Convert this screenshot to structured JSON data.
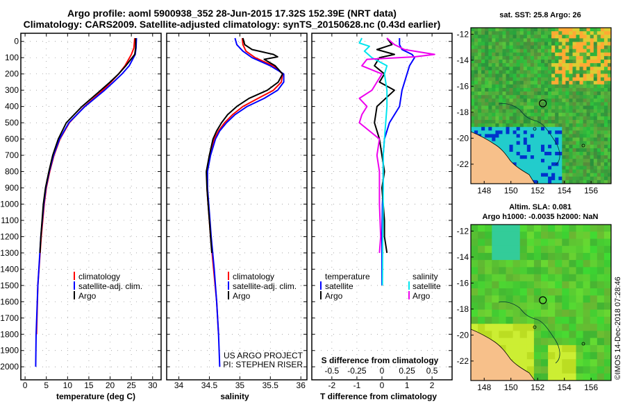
{
  "header": {
    "line1": "Argo profile: aoml 5900938_352 28-Jun-2015 17.32S 152.39E (NRT data)",
    "line2": "Climatology: CARS2009. Satellite-adjusted climatology: synTS_20150628.nc (0.43d earlier)"
  },
  "colors": {
    "climatology": "#ff0000",
    "satellite": "#0000ff",
    "argo": "#000000",
    "argo_t_diff": "#000000",
    "sat_s_diff": "#00e5ee",
    "argo_s_diff": "#ee00ee",
    "land": "#f7c08a"
  },
  "depth_axis": {
    "ticks": [
      "0",
      "100",
      "200",
      "300",
      "400",
      "500",
      "600",
      "700",
      "800",
      "900",
      "1000",
      "1100",
      "1200",
      "1300",
      "1400",
      "1500",
      "1600",
      "1700",
      "1800",
      "1900",
      "2000"
    ]
  },
  "chart_data": [
    {
      "type": "line",
      "name": "temperature-profile",
      "xlabel": "temperature (deg C)",
      "ylabel": "depth",
      "xlim": [
        -1,
        32
      ],
      "ylim": [
        2080,
        -50
      ],
      "xticks": [
        "0",
        "5",
        "10",
        "15",
        "20",
        "25",
        "30"
      ],
      "xtick_values": [
        0,
        5,
        10,
        15,
        20,
        25,
        30
      ],
      "legend": [
        "climatology",
        "satellite-adj. clim.",
        "Argo"
      ],
      "series": [
        {
          "name": "climatology",
          "color": "#ff0000",
          "depth": [
            -20,
            40,
            80,
            150,
            200,
            250,
            300,
            400,
            500,
            600,
            700,
            800,
            900,
            1000,
            1200,
            1500,
            1800
          ],
          "values": [
            25.8,
            25.6,
            25.0,
            23.5,
            22.0,
            20.2,
            18.3,
            14.0,
            10.4,
            8.2,
            6.8,
            5.8,
            5.0,
            4.5,
            3.8,
            3.0,
            2.7
          ]
        },
        {
          "name": "satellite-adj. clim.",
          "color": "#0000ff",
          "depth": [
            -20,
            40,
            80,
            150,
            200,
            250,
            300,
            400,
            500,
            600,
            700,
            800,
            900,
            1000,
            1200,
            1500,
            1800,
            2000
          ],
          "values": [
            26.2,
            26.1,
            25.9,
            24.5,
            22.8,
            20.8,
            18.7,
            14.1,
            10.3,
            8.1,
            6.7,
            5.7,
            4.9,
            4.4,
            3.7,
            3.0,
            2.6,
            2.5
          ]
        },
        {
          "name": "Argo",
          "color": "#000000",
          "depth": [
            -20,
            40,
            80,
            150,
            200,
            250,
            300,
            400,
            500,
            600,
            700,
            800,
            900,
            1000,
            1200,
            1300
          ],
          "values": [
            26.0,
            26.0,
            25.8,
            23.7,
            22.0,
            20.0,
            17.8,
            13.4,
            9.7,
            7.8,
            6.5,
            5.6,
            4.8,
            4.3,
            3.7,
            3.5
          ]
        }
      ]
    },
    {
      "type": "line",
      "name": "salinity-profile",
      "xlabel": "salinity",
      "ylabel": "depth",
      "xlim": [
        33.8,
        36.1
      ],
      "ylim": [
        2080,
        -50
      ],
      "xticks": [
        "34",
        "34.5",
        "35",
        "35.5",
        "36"
      ],
      "xtick_values": [
        34,
        34.5,
        35,
        35.5,
        36
      ],
      "legend": [
        "climatology",
        "satellite-adj. clim.",
        "Argo"
      ],
      "annotations": [
        "US ARGO PROJECT",
        "PI: STEPHEN RISER"
      ],
      "series": [
        {
          "name": "climatology",
          "color": "#ff0000",
          "depth": [
            -20,
            20,
            60,
            100,
            150,
            200,
            250,
            300,
            350,
            400,
            450,
            500,
            550,
            600,
            700,
            800,
            900,
            1000,
            1200,
            1400,
            1600,
            1800
          ],
          "values": [
            35.04,
            35.05,
            35.1,
            35.25,
            35.55,
            35.7,
            35.68,
            35.55,
            35.3,
            35.05,
            34.88,
            34.75,
            34.65,
            34.58,
            34.5,
            34.46,
            34.46,
            34.48,
            34.52,
            34.57,
            34.62,
            34.65
          ]
        },
        {
          "name": "satellite-adj. clim.",
          "color": "#0000ff",
          "depth": [
            -20,
            20,
            60,
            100,
            150,
            200,
            250,
            300,
            350,
            400,
            450,
            500,
            550,
            600,
            700,
            800,
            900,
            1000,
            1200,
            1400,
            1600,
            1800,
            2000
          ],
          "values": [
            34.92,
            34.95,
            35.05,
            35.2,
            35.5,
            35.72,
            35.72,
            35.62,
            35.4,
            35.12,
            34.92,
            34.78,
            34.67,
            34.6,
            34.52,
            34.47,
            34.47,
            34.49,
            34.53,
            34.58,
            34.62,
            34.65,
            34.67
          ]
        },
        {
          "name": "Argo",
          "color": "#000000",
          "depth": [
            -20,
            20,
            50,
            80,
            95,
            110,
            150,
            200,
            250,
            300,
            350,
            400,
            450,
            500,
            550,
            600,
            700,
            800,
            900,
            1000,
            1100,
            1200,
            1300
          ],
          "values": [
            35.05,
            35.08,
            35.2,
            35.55,
            35.62,
            35.4,
            35.58,
            35.7,
            35.63,
            35.45,
            35.15,
            34.95,
            34.8,
            34.7,
            34.62,
            34.56,
            34.5,
            34.45,
            34.46,
            34.48,
            34.5,
            34.52,
            34.54
          ]
        }
      ]
    },
    {
      "type": "line",
      "name": "difference-profile",
      "xlabel": "T difference from climatology",
      "secondary_xlabel": "S difference from climatology",
      "ylabel": "depth",
      "xlim": [
        -2.8,
        2.8
      ],
      "ylim": [
        2080,
        -50
      ],
      "xticks": [
        "-2",
        "-1",
        "0",
        "1",
        "2"
      ],
      "xtick_values": [
        -2,
        -1,
        0,
        1,
        2
      ],
      "secondary_xticks": [
        "-0.5",
        "-0.25",
        "0",
        "0.25",
        "0.5"
      ],
      "secondary_xtick_values": [
        -2,
        -1,
        0,
        1,
        2
      ],
      "legend_left_title": "temperature",
      "legend_right_title": "salinity",
      "legend_left": [
        "satellite",
        "Argo"
      ],
      "legend_right": [
        "satellite",
        "Argo"
      ],
      "series": [
        {
          "name": "T satellite",
          "color": "#0000ff",
          "depth": [
            -20,
            20,
            50,
            80,
            100,
            150,
            200,
            250,
            300,
            350,
            400,
            500,
            600,
            700,
            800,
            900,
            1000,
            1200,
            1400,
            1500
          ],
          "values": [
            0.7,
            0.7,
            0.8,
            1.2,
            1.3,
            1.1,
            1.0,
            0.9,
            0.8,
            0.75,
            0.7,
            0.3,
            0.1,
            0.05,
            0.05,
            0.05,
            0.02,
            0.0,
            0.0,
            0.0
          ]
        },
        {
          "name": "T Argo",
          "color": "#000000",
          "depth": [
            -20,
            20,
            50,
            80,
            100,
            150,
            200,
            250,
            300,
            400,
            500,
            600,
            700,
            800,
            900,
            1000,
            1100,
            1200,
            1300
          ],
          "values": [
            0.2,
            0.4,
            -0.2,
            0.5,
            -0.1,
            -0.3,
            0.1,
            -0.1,
            0.5,
            -0.2,
            -0.3,
            -0.1,
            0.0,
            0.1,
            0.0,
            0.05,
            0.1,
            0.1,
            0.2
          ]
        },
        {
          "name": "S satellite",
          "color": "#00e5ee",
          "depth": [
            -20,
            10,
            30,
            60,
            100,
            150,
            200,
            300,
            400,
            500,
            600,
            700,
            800,
            1000,
            1200,
            1500
          ],
          "values": [
            -0.8,
            -0.9,
            -0.5,
            -0.7,
            -0.4,
            0.2,
            0.1,
            0.2,
            0.2,
            0.15,
            0.1,
            0.05,
            0.05,
            0.05,
            0.03,
            0.02
          ]
        },
        {
          "name": "S Argo",
          "color": "#ee00ee",
          "depth": [
            -20,
            20,
            50,
            80,
            95,
            110,
            150,
            200,
            250,
            300,
            350,
            400,
            450,
            500,
            600,
            700,
            800,
            900,
            1000,
            1200,
            1300
          ],
          "values": [
            0.2,
            0.5,
            0.9,
            2.1,
            1.3,
            -0.6,
            -0.8,
            0.0,
            -0.2,
            -0.4,
            -0.9,
            -0.6,
            -0.8,
            -0.9,
            -0.1,
            -0.2,
            -0.1,
            -0.1,
            -0.1,
            -0.05,
            -0.1
          ]
        }
      ]
    },
    {
      "type": "heatmap",
      "name": "sst-map",
      "title": "sat. SST: 25.8 Argo: 26",
      "xticks": [
        "148",
        "150",
        "152",
        "154",
        "156"
      ],
      "yticks": [
        "-12",
        "-14",
        "-16",
        "-18",
        "-20",
        "-22"
      ],
      "xlim": [
        147,
        157.5
      ],
      "ylim": [
        -23.5,
        -11.5
      ],
      "argo_position": [
        152.39,
        -17.32
      ]
    },
    {
      "type": "heatmap",
      "name": "sla-map",
      "title_line1": "Altim. SLA: 0.081",
      "title_line2": "Argo h1000: -0.0035 h2000: NaN",
      "xticks": [
        "148",
        "150",
        "152",
        "154",
        "156"
      ],
      "yticks": [
        "-12",
        "-14",
        "-16",
        "-18",
        "-20",
        "-22"
      ],
      "xlim": [
        147,
        157.5
      ],
      "ylim": [
        -23.5,
        -11.5
      ],
      "argo_position": [
        152.39,
        -17.32
      ]
    }
  ],
  "watermark": "©IMOS 14-Dec-2018 07:28:46"
}
